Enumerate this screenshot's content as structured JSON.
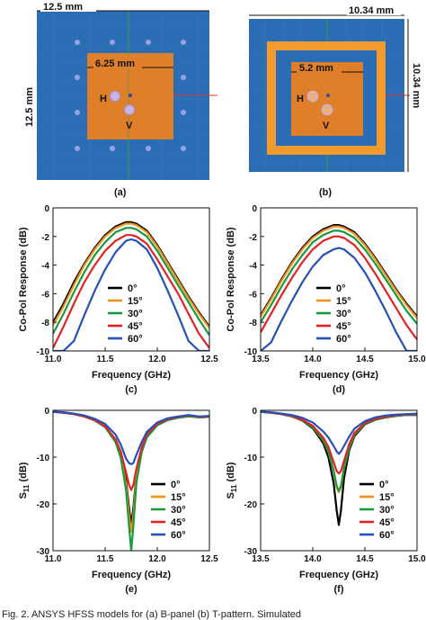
{
  "caption": "Fig. 2.   ANSYS HFSS models for (a) B-panel (b) T-pattern.   Simulated",
  "panels": {
    "a": {
      "label": "(a)",
      "dims": {
        "width": "12.5 mm",
        "height": "12.5 mm",
        "patch": "6.25 mm"
      },
      "ports": {
        "h": "H",
        "v": "V"
      },
      "colors": {
        "substrate": "#2b6db4",
        "patch": "#e07f2a",
        "via": "#9aa1e0"
      }
    },
    "b": {
      "label": "(b)",
      "dims": {
        "width": "10.34 mm",
        "height": "10.34 mm",
        "patch": "5.2 mm"
      },
      "ports": {
        "h": "H",
        "v": "V"
      },
      "colors": {
        "substrate": "#2b6db4",
        "ring": "#f29a2e",
        "patch": "#e07f2a"
      }
    }
  },
  "chart_data": [
    {
      "id": "c",
      "type": "line",
      "label": "(c)",
      "xlabel": "Frequency (GHz)",
      "ylabel": "Co-Pol Response (dB)",
      "xlim": [
        11.0,
        12.5
      ],
      "ylim": [
        -10,
        0
      ],
      "xticks": [
        "11.0",
        "11.5",
        "12.0",
        "12.5"
      ],
      "yticks": [
        "0",
        "-2",
        "-4",
        "-6",
        "-8",
        "-10"
      ],
      "x": [
        11.0,
        11.1,
        11.2,
        11.3,
        11.4,
        11.5,
        11.6,
        11.7,
        11.75,
        11.8,
        11.9,
        12.0,
        12.1,
        12.2,
        12.3,
        12.4,
        12.5
      ],
      "series": [
        {
          "name": "0°",
          "color": "#000000",
          "values": [
            -8.0,
            -6.7,
            -5.2,
            -3.9,
            -2.8,
            -1.9,
            -1.3,
            -1.0,
            -1.0,
            -1.1,
            -1.6,
            -2.6,
            -3.8,
            -5.0,
            -6.2,
            -7.3,
            -8.3
          ]
        },
        {
          "name": "15°",
          "color": "#f0921e",
          "values": [
            -8.2,
            -6.9,
            -5.4,
            -4.0,
            -2.9,
            -2.0,
            -1.4,
            -1.1,
            -1.1,
            -1.2,
            -1.7,
            -2.7,
            -3.9,
            -5.1,
            -6.3,
            -7.4,
            -8.4
          ]
        },
        {
          "name": "30°",
          "color": "#1a9a3c",
          "values": [
            -8.8,
            -7.4,
            -5.9,
            -4.5,
            -3.3,
            -2.4,
            -1.7,
            -1.4,
            -1.4,
            -1.5,
            -2.0,
            -3.0,
            -4.2,
            -5.4,
            -6.6,
            -7.8,
            -8.9
          ]
        },
        {
          "name": "45°",
          "color": "#e02424",
          "values": [
            -9.8,
            -8.3,
            -6.7,
            -5.2,
            -4.0,
            -3.0,
            -2.3,
            -1.9,
            -1.9,
            -2.0,
            -2.5,
            -3.6,
            -4.8,
            -6.0,
            -7.4,
            -8.8,
            -9.8
          ]
        },
        {
          "name": "60°",
          "color": "#2650b8",
          "values": [
            -10.0,
            -10.0,
            -9.3,
            -7.5,
            -5.8,
            -4.3,
            -3.1,
            -2.3,
            -2.2,
            -2.3,
            -2.9,
            -4.2,
            -5.8,
            -7.5,
            -9.3,
            -10.0,
            -10.0
          ]
        }
      ]
    },
    {
      "id": "d",
      "type": "line",
      "label": "(d)",
      "xlabel": "Frequency (GHz)",
      "ylabel": "Co-Pol Response (dB)",
      "xlim": [
        13.5,
        15.0
      ],
      "ylim": [
        -10,
        0
      ],
      "xticks": [
        "13.5",
        "14.0",
        "14.5",
        "15.0"
      ],
      "yticks": [
        "0",
        "-2",
        "-4",
        "-6",
        "-8",
        "-10"
      ],
      "x": [
        13.5,
        13.6,
        13.7,
        13.8,
        13.9,
        14.0,
        14.1,
        14.2,
        14.25,
        14.3,
        14.4,
        14.5,
        14.6,
        14.7,
        14.8,
        14.9,
        15.0
      ],
      "series": [
        {
          "name": "0°",
          "color": "#000000",
          "values": [
            -7.5,
            -6.3,
            -5.0,
            -3.8,
            -2.8,
            -2.0,
            -1.5,
            -1.2,
            -1.2,
            -1.3,
            -1.7,
            -2.5,
            -3.5,
            -4.6,
            -5.7,
            -6.7,
            -7.6
          ]
        },
        {
          "name": "15°",
          "color": "#f0921e",
          "values": [
            -7.6,
            -6.4,
            -5.1,
            -3.9,
            -2.9,
            -2.1,
            -1.6,
            -1.3,
            -1.3,
            -1.4,
            -1.8,
            -2.6,
            -3.6,
            -4.7,
            -5.8,
            -6.8,
            -7.7
          ]
        },
        {
          "name": "30°",
          "color": "#1a9a3c",
          "values": [
            -8.0,
            -6.8,
            -5.5,
            -4.3,
            -3.3,
            -2.4,
            -1.9,
            -1.6,
            -1.6,
            -1.7,
            -2.1,
            -2.9,
            -3.9,
            -5.0,
            -6.1,
            -7.2,
            -8.1
          ]
        },
        {
          "name": "45°",
          "color": "#e02424",
          "values": [
            -8.7,
            -7.4,
            -6.1,
            -4.9,
            -3.8,
            -2.9,
            -2.3,
            -2.0,
            -2.0,
            -2.1,
            -2.6,
            -3.5,
            -4.6,
            -5.8,
            -7.0,
            -8.2,
            -9.2
          ]
        },
        {
          "name": "60°",
          "color": "#2650b8",
          "values": [
            -10.0,
            -9.4,
            -7.9,
            -6.5,
            -5.2,
            -4.1,
            -3.3,
            -2.9,
            -2.8,
            -2.9,
            -3.5,
            -4.5,
            -5.8,
            -7.2,
            -8.7,
            -10.0,
            -10.0
          ]
        }
      ]
    },
    {
      "id": "e",
      "type": "line",
      "label": "(e)",
      "xlabel": "Frequency (GHz)",
      "ylabel": "S",
      "ylabel_sub": "11",
      "ylabel_tail": " (dB)",
      "xlim": [
        11.0,
        12.5
      ],
      "ylim": [
        -30,
        0
      ],
      "xticks": [
        "11.0",
        "11.5",
        "12.0",
        "12.5"
      ],
      "yticks": [
        "0",
        "-10",
        "-20",
        "-30"
      ],
      "x": [
        11.0,
        11.1,
        11.2,
        11.3,
        11.4,
        11.5,
        11.6,
        11.65,
        11.7,
        11.73,
        11.75,
        11.77,
        11.8,
        11.85,
        11.9,
        12.0,
        12.1,
        12.2,
        12.3,
        12.4,
        12.5
      ],
      "series": [
        {
          "name": "0°",
          "color": "#000000",
          "values": [
            -0.3,
            -0.5,
            -0.8,
            -1.3,
            -2.1,
            -3.5,
            -6.5,
            -9.5,
            -15.0,
            -21.0,
            -24.5,
            -21.0,
            -14.0,
            -8.5,
            -5.5,
            -3.0,
            -2.0,
            -1.5,
            -1.2,
            -1.5,
            -1.4
          ]
        },
        {
          "name": "15°",
          "color": "#f0921e",
          "values": [
            -0.3,
            -0.5,
            -0.8,
            -1.3,
            -2.1,
            -3.5,
            -6.6,
            -9.8,
            -15.8,
            -22.5,
            -26.0,
            -22.5,
            -14.5,
            -8.7,
            -5.6,
            -3.1,
            -2.0,
            -1.5,
            -1.2,
            -1.5,
            -1.4
          ]
        },
        {
          "name": "30°",
          "color": "#1a9a3c",
          "values": [
            -0.3,
            -0.5,
            -0.8,
            -1.3,
            -2.2,
            -3.6,
            -6.8,
            -10.2,
            -17.0,
            -25.0,
            -30.0,
            -25.0,
            -15.5,
            -9.0,
            -5.8,
            -3.2,
            -2.1,
            -1.6,
            -1.3,
            -1.5,
            -1.4
          ]
        },
        {
          "name": "45°",
          "color": "#e02424",
          "values": [
            -0.3,
            -0.5,
            -0.8,
            -1.3,
            -2.1,
            -3.4,
            -6.2,
            -8.8,
            -13.2,
            -16.0,
            -17.0,
            -16.0,
            -12.5,
            -8.0,
            -5.2,
            -2.9,
            -1.9,
            -1.4,
            -1.1,
            -1.4,
            -1.3
          ]
        },
        {
          "name": "60°",
          "color": "#2650b8",
          "values": [
            -0.3,
            -0.4,
            -0.7,
            -1.1,
            -1.8,
            -2.9,
            -5.2,
            -7.3,
            -10.3,
            -11.3,
            -11.5,
            -11.3,
            -9.5,
            -6.8,
            -4.6,
            -2.6,
            -1.7,
            -1.3,
            -1.0,
            -1.3,
            -1.2
          ]
        }
      ]
    },
    {
      "id": "f",
      "type": "line",
      "label": "(f)",
      "xlabel": "Frequency (GHz)",
      "ylabel": "S",
      "ylabel_sub": "11",
      "ylabel_tail": " (dB)",
      "xlim": [
        13.5,
        15.0
      ],
      "ylim": [
        -30,
        0
      ],
      "xticks": [
        "13.5",
        "14.0",
        "14.5",
        "15.0"
      ],
      "yticks": [
        "0",
        "-10",
        "-20",
        "-30"
      ],
      "x": [
        13.5,
        13.6,
        13.7,
        13.8,
        13.9,
        14.0,
        14.1,
        14.15,
        14.2,
        14.23,
        14.25,
        14.27,
        14.3,
        14.35,
        14.4,
        14.5,
        14.6,
        14.7,
        14.8,
        14.9,
        15.0
      ],
      "series": [
        {
          "name": "0°",
          "color": "#000000",
          "values": [
            -0.3,
            -0.5,
            -0.8,
            -1.3,
            -2.2,
            -3.8,
            -7.0,
            -10.0,
            -15.5,
            -21.5,
            -24.5,
            -21.5,
            -14.5,
            -8.5,
            -5.5,
            -3.0,
            -2.0,
            -1.5,
            -1.2,
            -1.0,
            -1.0
          ]
        },
        {
          "name": "15°",
          "color": "#f0921e",
          "values": [
            -0.3,
            -0.5,
            -0.8,
            -1.3,
            -2.1,
            -3.6,
            -6.4,
            -8.8,
            -13.0,
            -16.5,
            -17.5,
            -16.5,
            -12.5,
            -8.0,
            -5.2,
            -2.9,
            -1.9,
            -1.4,
            -1.1,
            -1.0,
            -0.9
          ]
        },
        {
          "name": "30°",
          "color": "#1a9a3c",
          "values": [
            -0.3,
            -0.5,
            -0.8,
            -1.3,
            -2.1,
            -3.6,
            -6.3,
            -8.7,
            -12.8,
            -16.2,
            -17.2,
            -16.2,
            -12.3,
            -7.9,
            -5.1,
            -2.9,
            -1.9,
            -1.4,
            -1.1,
            -1.0,
            -0.9
          ]
        },
        {
          "name": "45°",
          "color": "#e02424",
          "values": [
            -0.3,
            -0.5,
            -0.8,
            -1.2,
            -2.0,
            -3.3,
            -5.8,
            -7.8,
            -11.0,
            -13.0,
            -13.5,
            -13.0,
            -10.8,
            -7.2,
            -4.8,
            -2.7,
            -1.8,
            -1.3,
            -1.0,
            -0.9,
            -0.8
          ]
        },
        {
          "name": "60°",
          "color": "#2650b8",
          "values": [
            -0.3,
            -0.4,
            -0.7,
            -1.0,
            -1.6,
            -2.6,
            -4.5,
            -5.8,
            -7.6,
            -8.8,
            -9.3,
            -8.8,
            -7.6,
            -5.6,
            -3.9,
            -2.3,
            -1.5,
            -1.1,
            -0.9,
            -0.8,
            -0.7
          ]
        }
      ]
    }
  ]
}
